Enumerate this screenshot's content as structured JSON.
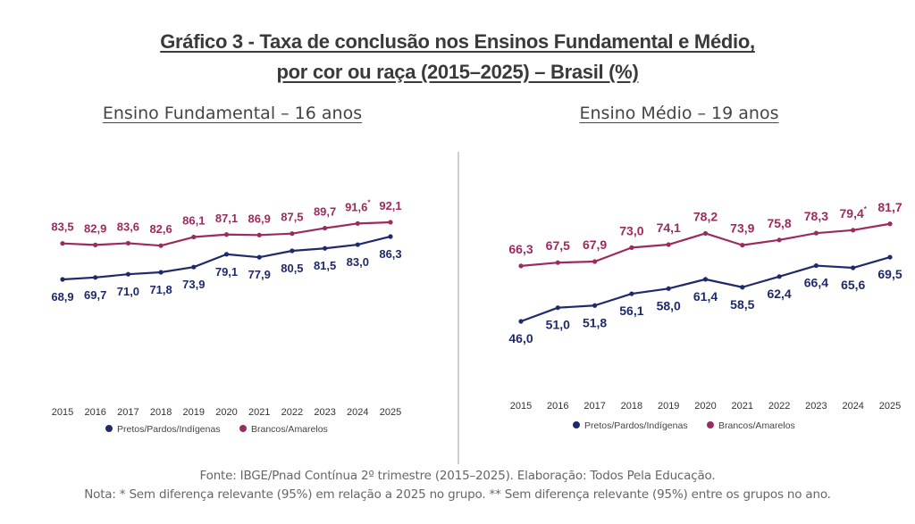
{
  "header": {
    "title_line1": "Gráfico 3 - Taxa de conclusão nos Ensinos Fundamental e Médio,",
    "title_line2": "por cor ou raça (2015–2025) – Brasil (%)"
  },
  "colors": {
    "pretos": "#1f2a6b",
    "brancos": "#9b2b5f"
  },
  "chart_data": [
    {
      "type": "line",
      "title": "Ensino Fundamental – 16 anos",
      "xlabel": "",
      "ylabel": "",
      "grid": false,
      "legend_position": "bottom",
      "x": [
        "2015",
        "2016",
        "2017",
        "2018",
        "2019",
        "2020",
        "2021",
        "2022",
        "2023",
        "2024",
        "2025"
      ],
      "series": [
        {
          "name": "Pretos/Pardos/Indígenas",
          "key": "pretos",
          "values": [
            68.9,
            69.7,
            71.0,
            71.8,
            73.9,
            79.1,
            77.9,
            80.5,
            81.5,
            83.0,
            86.3
          ],
          "labels": [
            "68,9",
            "69,7",
            "71,0",
            "71,8",
            "73,9",
            "79,1",
            "77,9",
            "80,5",
            "81,5",
            "83,0",
            "86,3"
          ]
        },
        {
          "name": "Brancos/Amarelos",
          "key": "brancos",
          "values": [
            83.5,
            82.9,
            83.6,
            82.6,
            86.1,
            87.1,
            86.9,
            87.5,
            89.7,
            91.6,
            92.1
          ],
          "labels": [
            "83,5",
            "82,9",
            "83,6",
            "82,6",
            "86,1",
            "87,1",
            "86,9",
            "87,5",
            "89,7",
            "91,6*",
            "92,1"
          ]
        }
      ]
    },
    {
      "type": "line",
      "title": "Ensino Médio – 19 anos",
      "xlabel": "",
      "ylabel": "",
      "grid": false,
      "legend_position": "bottom",
      "x": [
        "2015",
        "2016",
        "2017",
        "2018",
        "2019",
        "2020",
        "2021",
        "2022",
        "2023",
        "2024",
        "2025"
      ],
      "series": [
        {
          "name": "Pretos/Pardos/Indígenas",
          "key": "pretos",
          "values": [
            46.0,
            51.0,
            51.8,
            56.1,
            58.0,
            61.4,
            58.5,
            62.4,
            66.4,
            65.6,
            69.5
          ],
          "labels": [
            "46,0",
            "51,0",
            "51,8",
            "56,1",
            "58,0",
            "61,4",
            "58,5",
            "62,4",
            "66,4",
            "65,6",
            "69,5"
          ]
        },
        {
          "name": "Brancos/Amarelos",
          "key": "brancos",
          "values": [
            66.3,
            67.5,
            67.9,
            73.0,
            74.1,
            78.2,
            73.9,
            75.8,
            78.3,
            79.4,
            81.7
          ],
          "labels": [
            "66,3",
            "67,5",
            "67,9",
            "73,0",
            "74,1",
            "78,2",
            "73,9",
            "75,8",
            "78,3",
            "79,4*",
            "81,7"
          ]
        }
      ]
    }
  ],
  "footer": {
    "source": "Fonte: IBGE/Pnad Contínua 2º trimestre (2015–2025). Elaboração: Todos Pela Educação.",
    "note": "Nota: * Sem diferença relevante (95%) em relação a 2025 no grupo. ** Sem diferença relevante (95%) entre os grupos no ano."
  }
}
